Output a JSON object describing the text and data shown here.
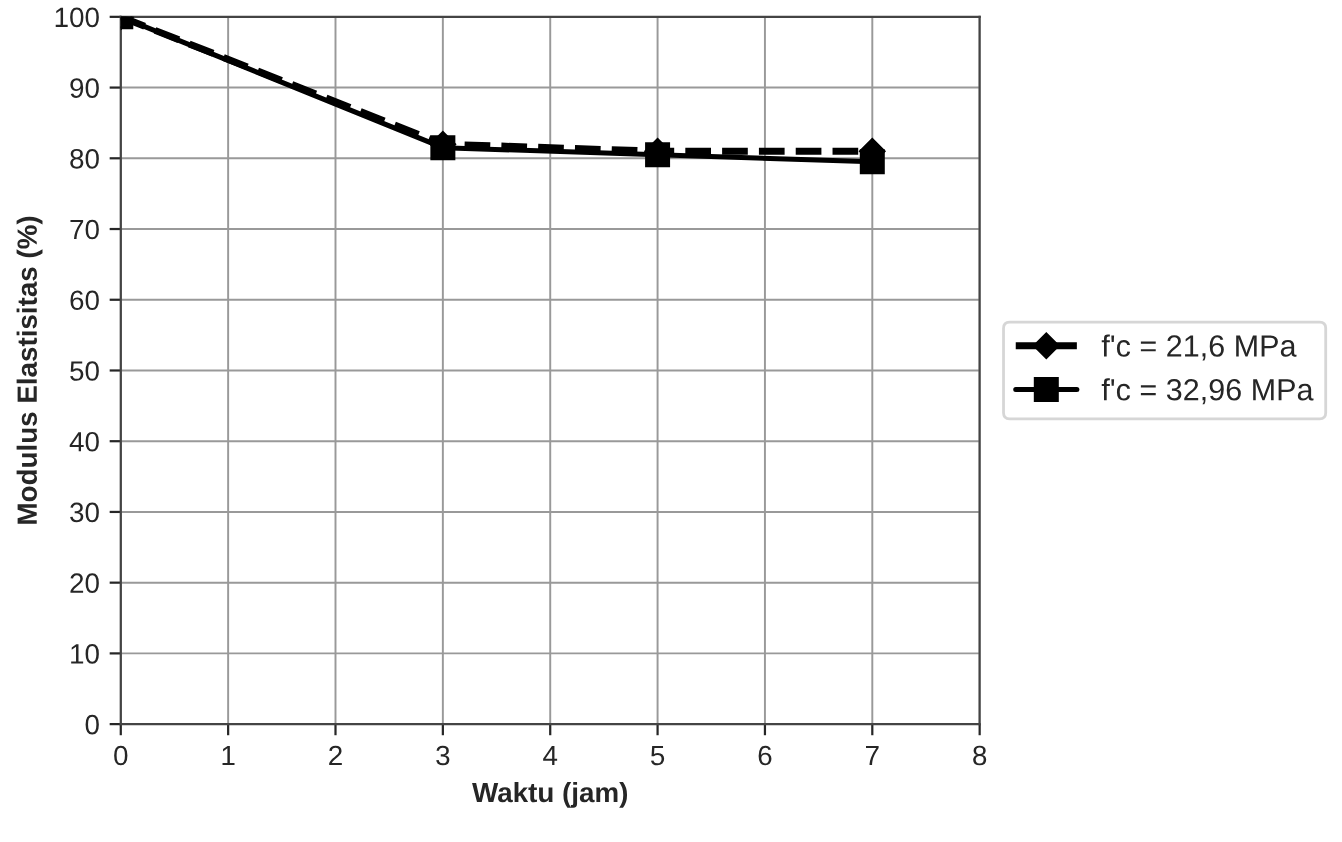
{
  "chart_data": {
    "type": "line",
    "xlabel": "Waktu (jam)",
    "ylabel": "Modulus Elastisitas (%)",
    "x": [
      0,
      3,
      5,
      7
    ],
    "series": [
      {
        "name": "f'c = 21,6 MPa",
        "color": "#000000",
        "values": [
          100,
          82,
          81,
          81
        ],
        "marker": "diamond",
        "line_style": "dashed"
      },
      {
        "name": "f'c = 32,96 MPa",
        "color": "#000000",
        "values": [
          100,
          81.5,
          80.5,
          79.5
        ],
        "marker": "square",
        "line_style": "solid"
      }
    ],
    "xlim": [
      0,
      8
    ],
    "xticks": [
      0,
      1,
      2,
      3,
      4,
      5,
      6,
      7,
      8
    ],
    "ylim": [
      0,
      100
    ],
    "yticks": [
      0,
      10,
      20,
      30,
      40,
      50,
      60,
      70,
      80,
      90,
      100
    ],
    "grid": true,
    "legend": "right"
  }
}
